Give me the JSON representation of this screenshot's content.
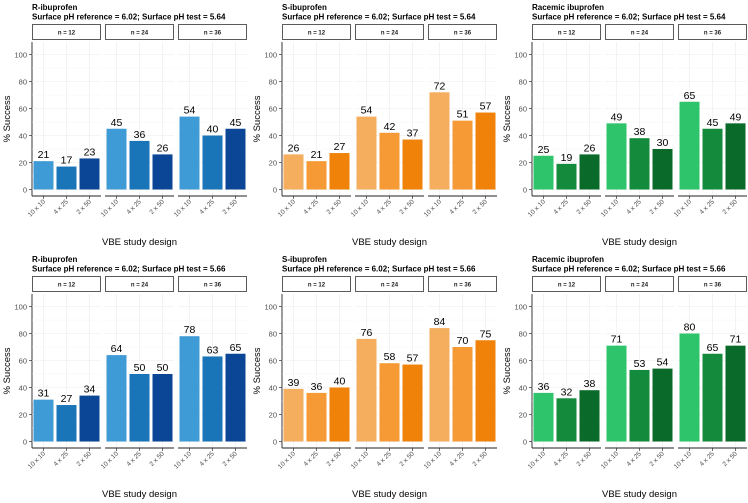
{
  "figure": {
    "panel_titles": [
      "R-ibuprofen",
      "S-ibuprofen",
      "Racemic ibuprofen"
    ],
    "row_subtitles": [
      "Surface pH reference = 6.02; Surface pH test = 5.64",
      "Surface pH reference = 6.02; Surface pH test = 5.66"
    ]
  },
  "chart_data": [
    {
      "type": "bar",
      "title": "R-ibuprofen",
      "subtitle": "Surface pH reference = 6.02; Surface pH test = 5.64",
      "xlabel": "VBE study design",
      "ylabel": "% Success",
      "ylim": [
        0,
        100
      ],
      "yticks": [
        0,
        20,
        40,
        60,
        80,
        100
      ],
      "facets": [
        "n = 12",
        "n = 24",
        "n = 36"
      ],
      "categories": [
        "10 x 10",
        "4 x 25",
        "2 x 50"
      ],
      "values": [
        [
          21,
          17,
          23
        ],
        [
          45,
          36,
          26
        ],
        [
          54,
          40,
          45
        ]
      ],
      "colors": [
        "#3f9bd6",
        "#1a74b8",
        "#0a4596"
      ]
    },
    {
      "type": "bar",
      "title": "S-ibuprofen",
      "subtitle": "Surface pH reference = 6.02; Surface pH test = 5.64",
      "xlabel": "VBE study design",
      "ylabel": "% Success",
      "ylim": [
        0,
        100
      ],
      "yticks": [
        0,
        20,
        40,
        60,
        80,
        100
      ],
      "facets": [
        "n = 12",
        "n = 24",
        "n = 36"
      ],
      "categories": [
        "10 x 10",
        "4 x 25",
        "2 x 50"
      ],
      "values": [
        [
          26,
          21,
          27
        ],
        [
          54,
          42,
          37
        ],
        [
          72,
          51,
          57
        ]
      ],
      "colors": [
        "#f5ad5e",
        "#f59a35",
        "#f0820a"
      ]
    },
    {
      "type": "bar",
      "title": "Racemic ibuprofen",
      "subtitle": "Surface pH reference = 6.02; Surface pH test = 5.64",
      "xlabel": "VBE study design",
      "ylabel": "% Success",
      "ylim": [
        0,
        100
      ],
      "yticks": [
        0,
        20,
        40,
        60,
        80,
        100
      ],
      "facets": [
        "n = 12",
        "n = 24",
        "n = 36"
      ],
      "categories": [
        "10 x 10",
        "4 x 25",
        "2 x 50"
      ],
      "values": [
        [
          25,
          19,
          26
        ],
        [
          49,
          38,
          30
        ],
        [
          65,
          45,
          49
        ]
      ],
      "colors": [
        "#2dc46b",
        "#138a3c",
        "#0a6a2a"
      ]
    },
    {
      "type": "bar",
      "title": "R-ibuprofen",
      "subtitle": "Surface pH reference = 6.02; Surface pH test = 5.66",
      "xlabel": "VBE study design",
      "ylabel": "% Success",
      "ylim": [
        0,
        100
      ],
      "yticks": [
        0,
        20,
        40,
        60,
        80,
        100
      ],
      "facets": [
        "n = 12",
        "n = 24",
        "n = 36"
      ],
      "categories": [
        "10 x 10",
        "4 x 25",
        "2 x 50"
      ],
      "values": [
        [
          31,
          27,
          34
        ],
        [
          64,
          50,
          50
        ],
        [
          78,
          63,
          65
        ]
      ],
      "colors": [
        "#3f9bd6",
        "#1a74b8",
        "#0a4596"
      ]
    },
    {
      "type": "bar",
      "title": "S-ibuprofen",
      "subtitle": "Surface pH reference = 6.02; Surface pH test = 5.66",
      "xlabel": "VBE study design",
      "ylabel": "% Success",
      "ylim": [
        0,
        100
      ],
      "yticks": [
        0,
        20,
        40,
        60,
        80,
        100
      ],
      "facets": [
        "n = 12",
        "n = 24",
        "n = 36"
      ],
      "categories": [
        "10 x 10",
        "4 x 25",
        "2 x 50"
      ],
      "values": [
        [
          39,
          36,
          40
        ],
        [
          76,
          58,
          57
        ],
        [
          84,
          70,
          75
        ]
      ],
      "colors": [
        "#f5ad5e",
        "#f59a35",
        "#f0820a"
      ]
    },
    {
      "type": "bar",
      "title": "Racemic ibuprofen",
      "subtitle": "Surface pH reference = 6.02; Surface pH test = 5.66",
      "xlabel": "VBE study design",
      "ylabel": "% Success",
      "ylim": [
        0,
        100
      ],
      "yticks": [
        0,
        20,
        40,
        60,
        80,
        100
      ],
      "facets": [
        "n = 12",
        "n = 24",
        "n = 36"
      ],
      "categories": [
        "10 x 10",
        "4 x 25",
        "2 x 50"
      ],
      "values": [
        [
          36,
          32,
          38
        ],
        [
          71,
          53,
          54
        ],
        [
          80,
          65,
          71
        ]
      ],
      "colors": [
        "#2dc46b",
        "#138a3c",
        "#0a6a2a"
      ]
    }
  ]
}
